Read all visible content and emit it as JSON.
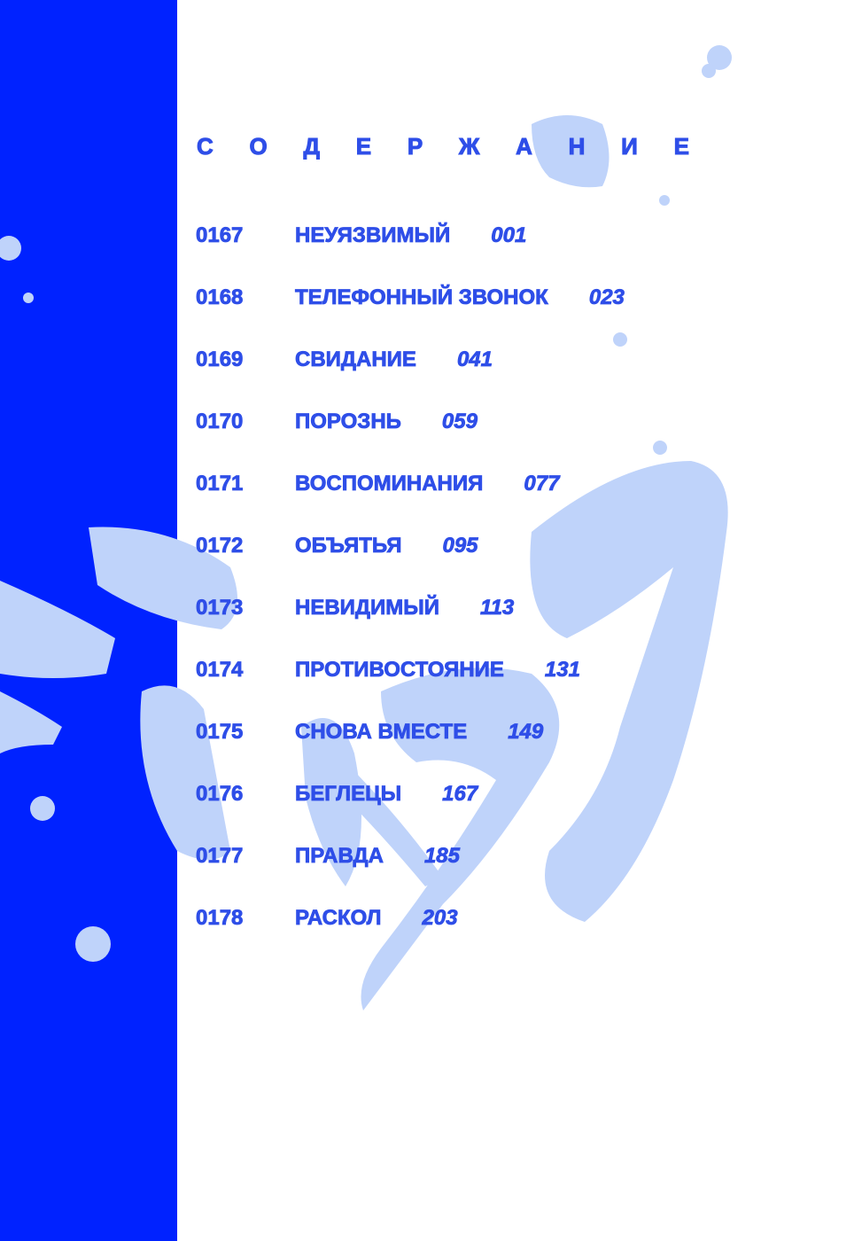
{
  "heading": "СОДЕРЖАНИЕ",
  "colors": {
    "band": "#0022ff",
    "text": "#2e4ee8",
    "splash": "#bfd3fa"
  },
  "entries": [
    {
      "chapter": "0167",
      "title": "НЕУЯЗВИМЫЙ",
      "page": "001"
    },
    {
      "chapter": "0168",
      "title": "ТЕЛЕФОННЫЙ ЗВОНОК",
      "page": "023"
    },
    {
      "chapter": "0169",
      "title": "СВИДАНИЕ",
      "page": "041"
    },
    {
      "chapter": "0170",
      "title": "ПОРОЗНЬ",
      "page": "059"
    },
    {
      "chapter": "0171",
      "title": "ВОСПОМИНАНИЯ",
      "page": "077"
    },
    {
      "chapter": "0172",
      "title": "ОБЪЯТЬЯ",
      "page": "095"
    },
    {
      "chapter": "0173",
      "title": "НЕВИДИМЫЙ",
      "page": "113"
    },
    {
      "chapter": "0174",
      "title": "ПРОТИВОСТОЯНИЕ",
      "page": "131"
    },
    {
      "chapter": "0175",
      "title": "СНОВА ВМЕСТЕ",
      "page": "149"
    },
    {
      "chapter": "0176",
      "title": "БЕГЛЕЦЫ",
      "page": "167"
    },
    {
      "chapter": "0177",
      "title": "ПРАВДА",
      "page": "185"
    },
    {
      "chapter": "0178",
      "title": "РАСКОЛ",
      "page": "203"
    }
  ]
}
